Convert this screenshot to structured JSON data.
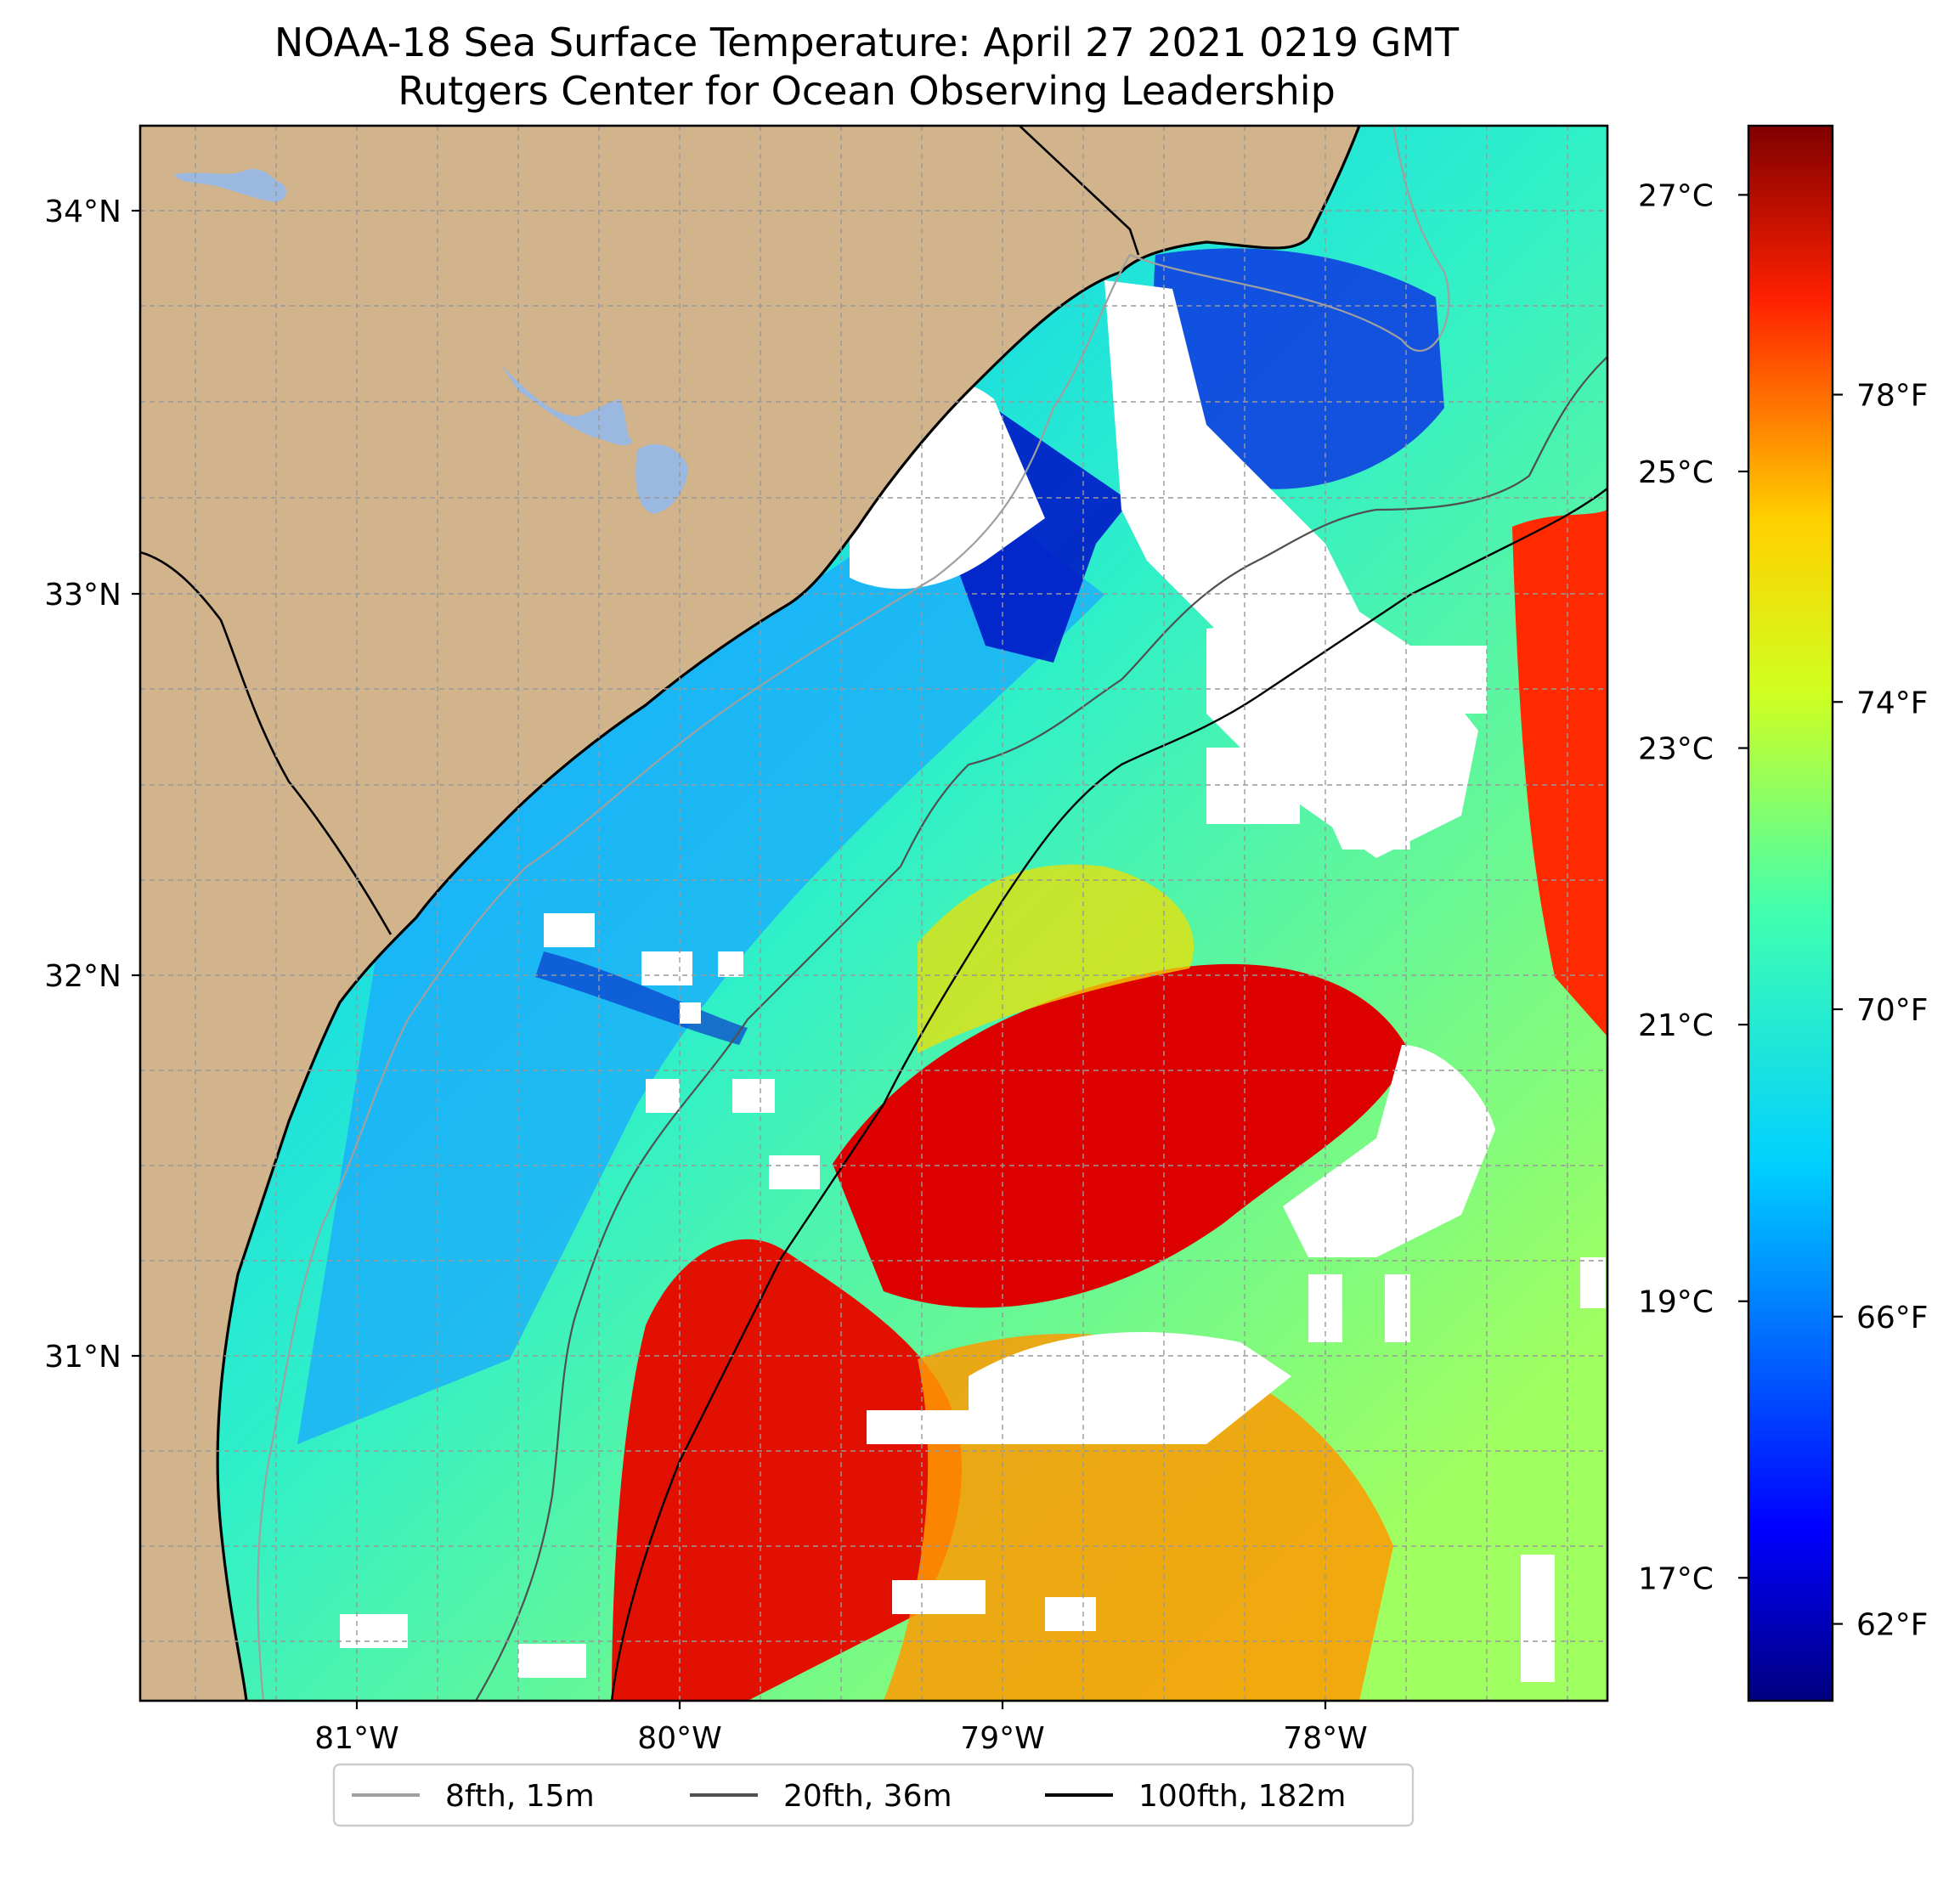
{
  "title": {
    "line1": "NOAA-18 Sea Surface Temperature: April 27 2021 0219 GMT",
    "line2": "Rutgers Center for Ocean Observing Leadership"
  },
  "colors": {
    "land": "#d2b48c",
    "lakes": "#9ab8e0",
    "graticule": "#999999",
    "contour_8fth": "#a0a0a0",
    "contour_20fth": "#505050",
    "contour_100fth": "#000000",
    "cloud_mask": "#ffffff"
  },
  "map": {
    "lat_labels": [
      "34°N",
      "33°N",
      "32°N",
      "31°N"
    ],
    "lon_labels": [
      "81°W",
      "80°W",
      "79°W",
      "78°W"
    ],
    "extent": {
      "lon_min": -81.67,
      "lon_max": -77.15,
      "lat_min": 30.26,
      "lat_max": 34.22
    }
  },
  "chart_data": {
    "type": "heatmap",
    "title": "NOAA-18 Sea Surface Temperature: April 27 2021 0219 GMT",
    "subtitle": "Rutgers Center for Ocean Observing Leadership",
    "variable": "Sea Surface Temperature",
    "colormap": "jet",
    "celsius_ticks": [
      {
        "value": 27,
        "label": "27°C"
      },
      {
        "value": 25,
        "label": "25°C"
      },
      {
        "value": 23,
        "label": "23°C"
      },
      {
        "value": 21,
        "label": "21°C"
      },
      {
        "value": 19,
        "label": "19°C"
      },
      {
        "value": 17,
        "label": "17°C"
      }
    ],
    "fahrenheit_ticks": [
      {
        "value": 78,
        "label": "78°F"
      },
      {
        "value": 74,
        "label": "74°F"
      },
      {
        "value": 70,
        "label": "70°F"
      },
      {
        "value": 66,
        "label": "66°F"
      },
      {
        "value": 62,
        "label": "62°F"
      }
    ],
    "crange_f": [
      61.0,
      81.5
    ],
    "legend": [
      {
        "label": "8fth, 15m",
        "color": "#a0a0a0"
      },
      {
        "label": "20fth, 36m",
        "color": "#505050"
      },
      {
        "label": "100fth, 182m",
        "color": "#000000"
      }
    ]
  }
}
